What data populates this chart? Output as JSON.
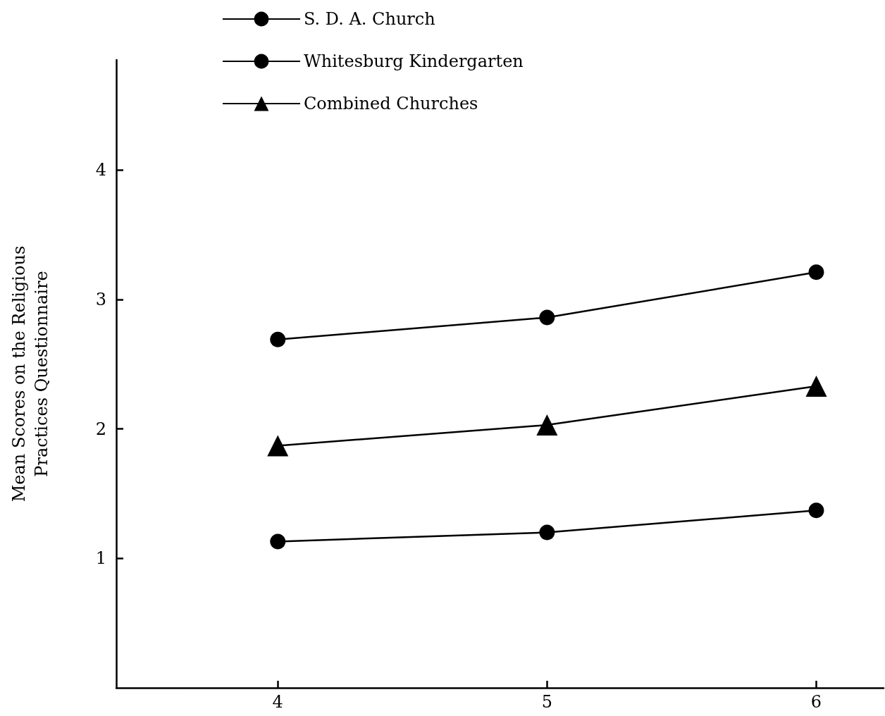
{
  "chart_data": {
    "type": "line",
    "ylabel": "Mean Scores on the Religious\nPractices Questionnaire",
    "x": [
      4,
      5,
      6
    ],
    "xlim": [
      3.4,
      6.25
    ],
    "xticks": [
      4,
      5,
      6
    ],
    "ylim": [
      0,
      4.85
    ],
    "yticks": [
      1,
      2,
      3,
      4
    ],
    "series": [
      {
        "name": "S. D. A. Church",
        "color": "#000000",
        "marker": "circle",
        "values": [
          2.69,
          2.86,
          3.21
        ]
      },
      {
        "name": "Whitesburg Kindergarten",
        "color": "#000000",
        "marker": "circle",
        "values": [
          1.13,
          1.2,
          1.37
        ]
      },
      {
        "name": "Combined Churches",
        "color": "#000000",
        "marker": "triangle",
        "values": [
          1.87,
          2.03,
          2.33
        ]
      }
    ],
    "legend": "top left",
    "grid": false,
    "line_style": "solid"
  }
}
